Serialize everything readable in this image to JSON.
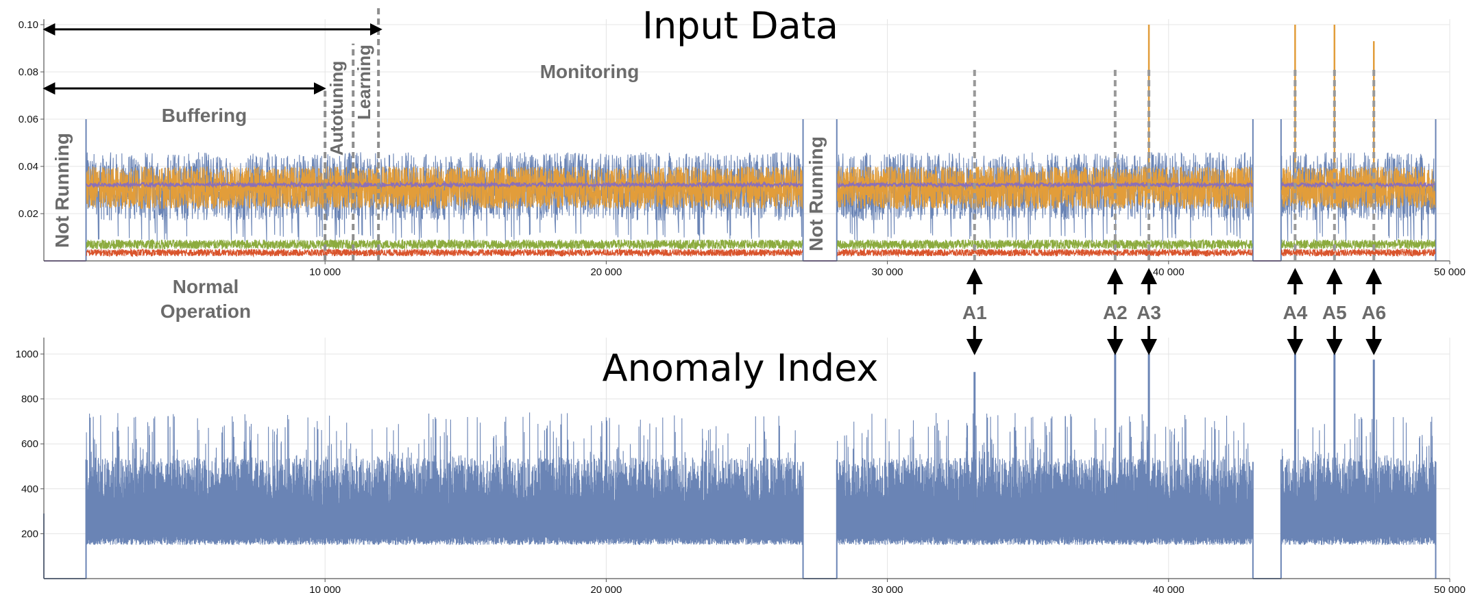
{
  "colors": {
    "blue": "#6a84b5",
    "orange": "#e29d3a",
    "green": "#8cab3e",
    "red": "#d9542c",
    "purple": "#8b70b7",
    "grid": "#e4e4e4",
    "axis": "#555555",
    "phase_text": "#6b6b6b",
    "dashed_marker": "#999999"
  },
  "chart_data": [
    {
      "id": "input-data",
      "type": "line",
      "title": "Input Data",
      "xlim": [
        0,
        50000
      ],
      "ylim": [
        0,
        0.1
      ],
      "x_ticks": [
        10000,
        20000,
        30000,
        40000,
        50000
      ],
      "x_tick_labels": [
        "10 000",
        "20 000",
        "30 000",
        "40 000",
        "50 000"
      ],
      "y_ticks": [
        0.02,
        0.04,
        0.06,
        0.08,
        0.1
      ],
      "y_tick_labels": [
        "0.02",
        "0.04",
        "0.06",
        "0.08",
        "0.10"
      ],
      "running_segments": [
        [
          1500,
          27000
        ],
        [
          28200,
          43000
        ],
        [
          44000,
          49500
        ]
      ],
      "series": [
        {
          "name": "blue",
          "color_key": "blue",
          "low": 0.018,
          "high": 0.045,
          "dips_to": 0.008
        },
        {
          "name": "orange",
          "color_key": "orange",
          "low": 0.022,
          "high": 0.04
        },
        {
          "name": "purple",
          "color_key": "purple",
          "level": 0.032
        },
        {
          "name": "green",
          "color_key": "green",
          "low": 0.005,
          "high": 0.009
        },
        {
          "name": "red",
          "color_key": "red",
          "low": 0.002,
          "high": 0.005
        }
      ],
      "spikes": [
        {
          "x": 39300,
          "y": 0.1
        },
        {
          "x": 44500,
          "y": 0.1
        },
        {
          "x": 45900,
          "y": 0.1
        },
        {
          "x": 47300,
          "y": 0.093
        }
      ],
      "phase_lines": [
        {
          "x": 10000,
          "top": 0.072
        },
        {
          "x": 11000,
          "top": 0.092
        },
        {
          "x": 11900,
          "top": 0.1
        }
      ],
      "anomaly_markers": [
        {
          "x": 33100,
          "top": 0.082
        },
        {
          "x": 38100,
          "top": 0.082
        },
        {
          "x": 39300,
          "top": 0.082
        },
        {
          "x": 44500,
          "top": 0.082
        },
        {
          "x": 45900,
          "top": 0.082
        },
        {
          "x": 47300,
          "top": 0.082
        }
      ],
      "phase_spans": [
        {
          "from": 0,
          "to": 12000,
          "y": 0.098
        },
        {
          "from": 0,
          "to": 10000,
          "y": 0.073
        }
      ],
      "labels": {
        "monitoring": "Monitoring",
        "buffering": "Buffering",
        "autotuning": "Autotuning",
        "learning": "Learning",
        "not_running": "Not Running",
        "normal_operation_1": "Normal",
        "normal_operation_2": "Operation"
      }
    },
    {
      "id": "anomaly-index",
      "type": "line",
      "title": "Anomaly Index",
      "xlim": [
        0,
        50000
      ],
      "ylim": [
        0,
        1050
      ],
      "x_ticks": [
        10000,
        20000,
        30000,
        40000,
        50000
      ],
      "x_tick_labels": [
        "10 000",
        "20 000",
        "30 000",
        "40 000",
        "50 000"
      ],
      "y_ticks": [
        200,
        400,
        600,
        800,
        1000
      ],
      "y_tick_labels": [
        "200",
        "400",
        "600",
        "800",
        "1000"
      ],
      "running_segments": [
        [
          1500,
          27000
        ],
        [
          28200,
          43000
        ],
        [
          44000,
          49500
        ]
      ],
      "series": [
        {
          "name": "anomaly index",
          "color_key": "blue",
          "low": 150,
          "high": 540,
          "peaks_to": 740
        }
      ],
      "spikes": [
        {
          "x": 33100,
          "y": 920
        },
        {
          "x": 38100,
          "y": 1000
        },
        {
          "x": 39300,
          "y": 1000
        },
        {
          "x": 44500,
          "y": 1000
        },
        {
          "x": 45900,
          "y": 1000
        },
        {
          "x": 47300,
          "y": 975
        }
      ]
    }
  ],
  "anomalies": [
    {
      "label": "A1",
      "x": 33100
    },
    {
      "label": "A2",
      "x": 38100
    },
    {
      "label": "A3",
      "x": 39300
    },
    {
      "label": "A4",
      "x": 44500
    },
    {
      "label": "A5",
      "x": 45900
    },
    {
      "label": "A6",
      "x": 47300
    }
  ]
}
